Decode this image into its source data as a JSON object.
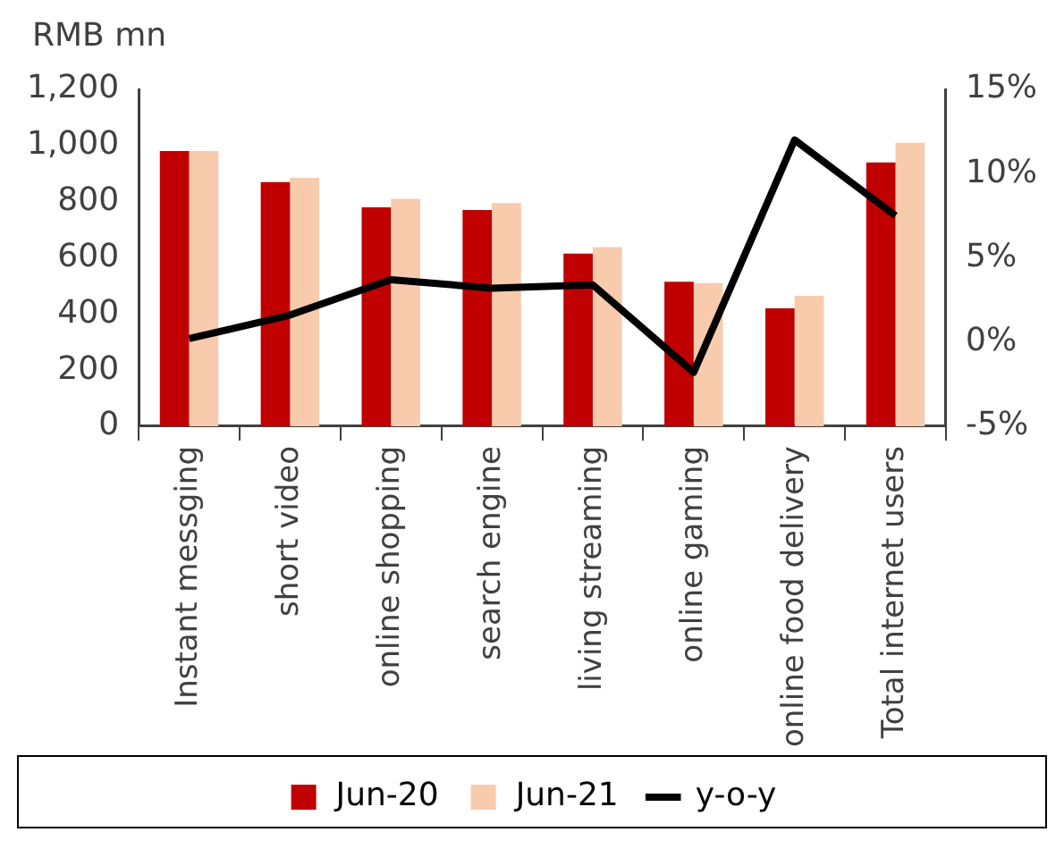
{
  "chart_data": {
    "type": "bar",
    "ylabel": "RMB mn",
    "categories": [
      "Instant messging",
      "short video",
      "online shopping",
      "search engine",
      "living streaming",
      "online gaming",
      "online food delivery",
      "Total internet users"
    ],
    "series": [
      {
        "name": "Jun-20",
        "color": "#c00000",
        "values": [
          980,
          870,
          780,
          770,
          615,
          515,
          420,
          940
        ]
      },
      {
        "name": "Jun-21",
        "color": "#f8cbad",
        "values": [
          980,
          885,
          810,
          795,
          638,
          510,
          465,
          1010
        ]
      },
      {
        "name": "y-o-y",
        "type": "line",
        "axis": "y2",
        "color": "#000000",
        "values": [
          0.2,
          1.6,
          3.7,
          3.2,
          3.4,
          -1.8,
          12,
          7.5
        ]
      }
    ],
    "ylim": [
      0,
      1200
    ],
    "yticks": [
      0,
      200,
      400,
      600,
      800,
      {
        "value": 1000,
        "label": "1,000"
      },
      {
        "value": 1200,
        "label": "1,200"
      }
    ],
    "y2lim": [
      -5,
      15
    ],
    "y2ticks": [
      {
        "value": -5,
        "label": "-5%"
      },
      {
        "value": 0,
        "label": "0%"
      },
      {
        "value": 5,
        "label": "5%"
      },
      {
        "value": 10,
        "label": "10%"
      },
      {
        "value": 15,
        "label": "15%"
      }
    ],
    "grid": false,
    "legend": "bottom",
    "marker": "none",
    "line_style": "solid"
  }
}
